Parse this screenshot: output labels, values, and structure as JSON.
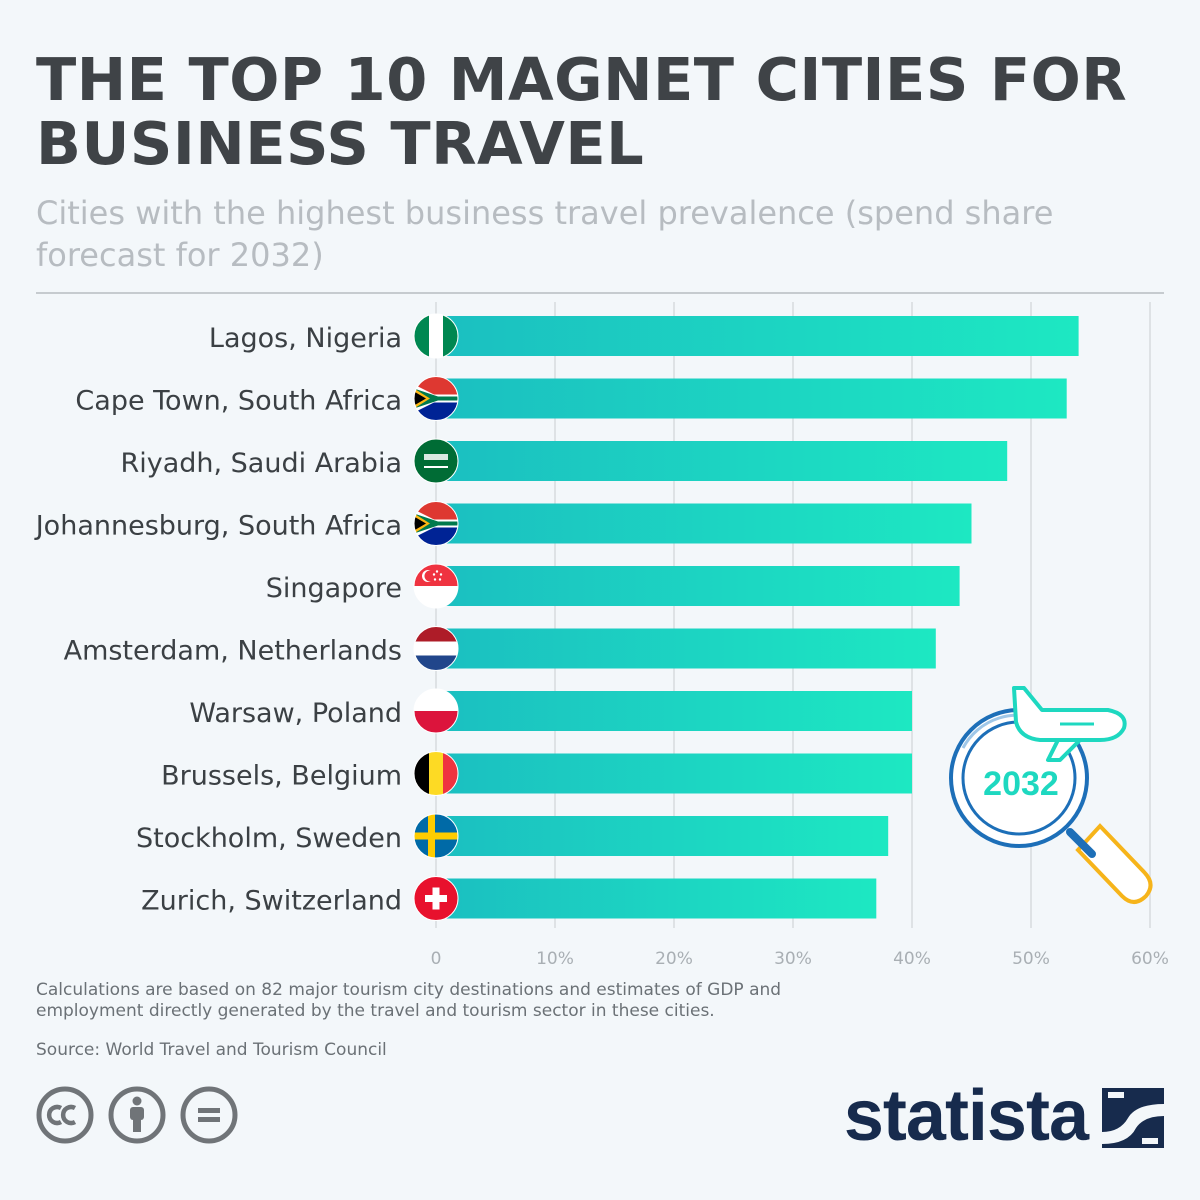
{
  "title": "THE TOP 10 MAGNET CITIES FOR BUSINESS TRAVEL",
  "subtitle": "Cities with the highest business travel prevalence (spend share forecast for 2032)",
  "footnote": "Calculations are based on 82 major tourism city destinations and estimates of GDP and employment directly generated by the travel and tourism sector in these cities.",
  "source": "Source: World Travel and Tourism Council",
  "brand": "statista",
  "badge_year": "2032",
  "colors": {
    "bar_start": "#1bbfc1",
    "bar_end": "#1de8c2",
    "text": "#3b4044",
    "tick": "#a9afb4",
    "grid": "#d7dbde",
    "brand": "#172b4d",
    "magnifier": "#1d6fb8",
    "handle": "#f6b41a"
  },
  "chart_data": {
    "type": "bar",
    "orientation": "horizontal",
    "title": "THE TOP 10 MAGNET CITIES FOR BUSINESS TRAVEL",
    "xlabel": "",
    "ylabel": "",
    "xlim": [
      0,
      60
    ],
    "xticks": [
      0,
      10,
      20,
      30,
      40,
      50,
      60
    ],
    "xtick_labels": [
      "0",
      "10%",
      "20%",
      "30%",
      "40%",
      "50%",
      "60%"
    ],
    "grid": true,
    "categories": [
      "Lagos, Nigeria",
      "Cape Town, South Africa",
      "Riyadh, Saudi Arabia",
      "Johannesburg, South Africa",
      "Singapore",
      "Amsterdam, Netherlands",
      "Warsaw, Poland",
      "Brussels, Belgium",
      "Stockholm, Sweden",
      "Zurich, Switzerland"
    ],
    "flags": [
      "nigeria",
      "south-africa",
      "saudi-arabia",
      "south-africa",
      "singapore",
      "netherlands",
      "poland",
      "belgium",
      "sweden",
      "switzerland"
    ],
    "values": [
      54,
      53,
      48,
      45,
      44,
      42,
      40,
      40,
      38,
      37
    ]
  }
}
